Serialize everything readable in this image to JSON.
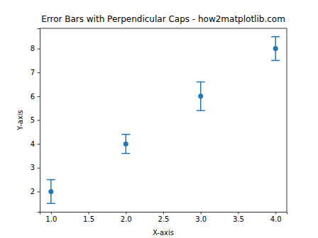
{
  "chart_data": {
    "type": "scatter",
    "title": "Error Bars with Perpendicular Caps - how2matplotlib.com",
    "x_label": "X-axis",
    "y_label": "Y-axis",
    "x": [
      1,
      2,
      3,
      4
    ],
    "values": [
      2,
      4,
      6,
      8
    ],
    "errors": [
      0.5,
      0.4,
      0.6,
      0.5
    ],
    "color": "#1f77b4",
    "marker": "o",
    "xlim": [
      0.85,
      4.15
    ],
    "ylim": [
      1.15,
      8.85
    ],
    "xticks": [
      {
        "value": 1,
        "label": "1.0"
      },
      {
        "value": 1.5,
        "label": "1.5"
      },
      {
        "value": 2,
        "label": "2.0"
      },
      {
        "value": 2.5,
        "label": "2.5"
      },
      {
        "value": 3,
        "label": "3.0"
      },
      {
        "value": 3.5,
        "label": "3.5"
      },
      {
        "value": 4,
        "label": "4.0"
      }
    ],
    "yticks": [
      2,
      3,
      4,
      5,
      6,
      7,
      8
    ],
    "grid": false
  }
}
